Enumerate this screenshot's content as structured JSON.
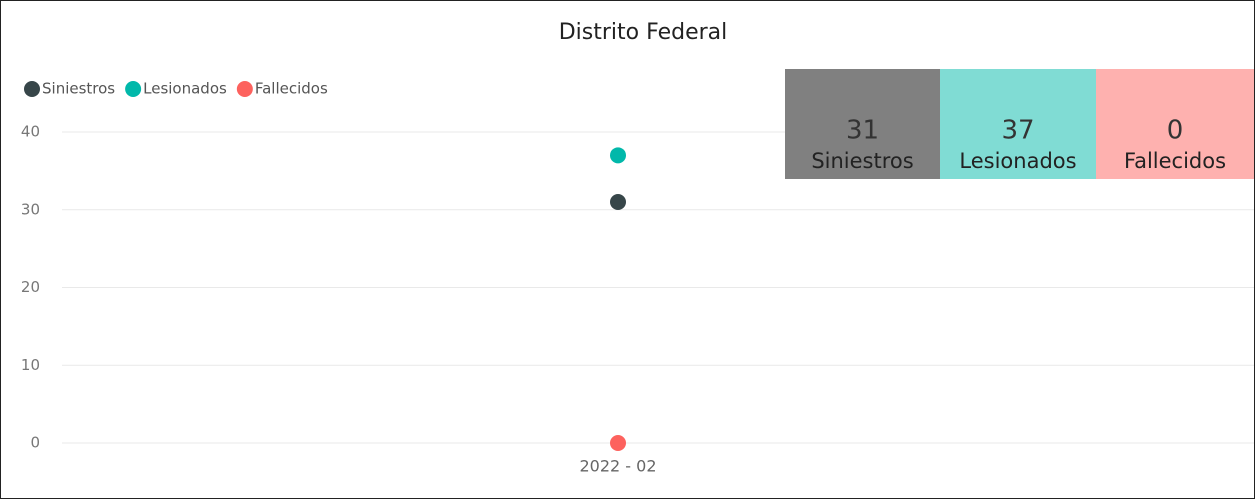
{
  "chart_data": {
    "type": "line",
    "title": "Distrito Federal",
    "categories": [
      "2022 - 02"
    ],
    "series": [
      {
        "name": "Siniestros",
        "color": "#374649",
        "card_color": "#808080",
        "values": [
          31
        ]
      },
      {
        "name": "Lesionados",
        "color": "#01b8aa",
        "card_color": "#80dcd4",
        "values": [
          37
        ]
      },
      {
        "name": "Fallecidos",
        "color": "#fd625e",
        "card_color": "#feb1af",
        "values": [
          0
        ]
      }
    ],
    "ylim": [
      0,
      40
    ],
    "yticks": [
      0,
      10,
      20,
      30,
      40
    ],
    "grid": true,
    "legend": "top-left"
  }
}
